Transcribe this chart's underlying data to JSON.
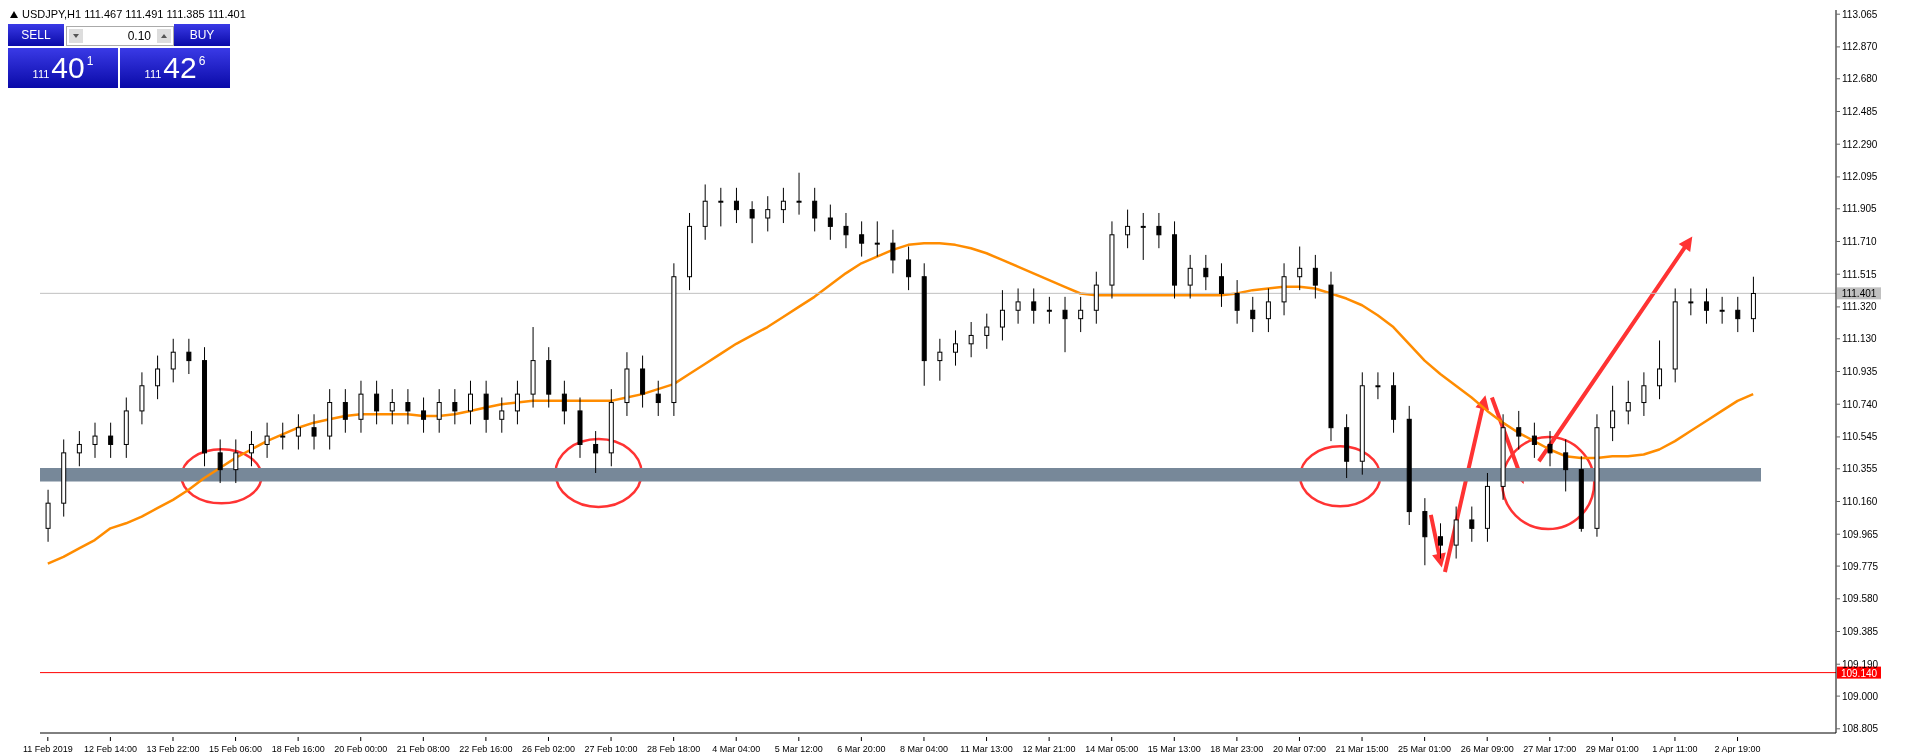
{
  "chart_data": {
    "type": "candlestick",
    "title": "USDJPY,H1 111.467 111.491 111.385 111.401",
    "annotations": [
      "SELL",
      "BUY",
      "0.10",
      "111",
      "40",
      "1",
      "111",
      "42",
      "6"
    ],
    "categories": [
      "11 Feb 2019",
      null,
      null,
      null,
      "12 Feb 14:00",
      null,
      null,
      null,
      "13 Feb 22:00",
      null,
      null,
      null,
      "15 Feb 06:00",
      null,
      null,
      null,
      "18 Feb 16:00",
      null,
      null,
      null,
      "20 Feb 00:00",
      null,
      null,
      null,
      "21 Feb 08:00",
      null,
      null,
      null,
      "22 Feb 16:00",
      null,
      null,
      null,
      "26 Feb 02:00",
      null,
      null,
      null,
      "27 Feb 10:00",
      null,
      null,
      null,
      "28 Feb 18:00",
      null,
      null,
      null,
      "4 Mar 04:00",
      null,
      null,
      null,
      "5 Mar 12:00",
      null,
      null,
      null,
      "6 Mar 20:00",
      null,
      null,
      null,
      "8 Mar 04:00",
      null,
      null,
      null,
      "11 Mar 13:00",
      null,
      null,
      null,
      "12 Mar 21:00",
      null,
      null,
      null,
      "14 Mar 05:00",
      null,
      null,
      null,
      "15 Mar 13:00",
      null,
      null,
      null,
      "18 Mar 23:00",
      null,
      null,
      null,
      "20 Mar 07:00",
      null,
      null,
      null,
      "21 Mar 15:00",
      null,
      null,
      null,
      "25 Mar 01:00",
      null,
      null,
      null,
      "26 Mar 09:00",
      null,
      null,
      null,
      "27 Mar 17:00",
      null,
      null,
      null,
      "29 Mar 01:00",
      null,
      null,
      null,
      "1 Apr 11:00",
      null,
      null,
      null,
      "2 Apr 19:00",
      null
    ],
    "color": "#000000",
    "ohlc": [
      [
        110.0,
        110.23,
        109.92,
        110.15
      ],
      [
        110.15,
        110.53,
        110.07,
        110.45
      ],
      [
        110.45,
        110.58,
        110.37,
        110.5
      ],
      [
        110.5,
        110.63,
        110.42,
        110.55
      ],
      [
        110.55,
        110.63,
        110.42,
        110.5
      ],
      [
        110.5,
        110.78,
        110.42,
        110.7
      ],
      [
        110.7,
        110.93,
        110.62,
        110.85
      ],
      [
        110.85,
        111.03,
        110.77,
        110.95
      ],
      [
        110.95,
        111.13,
        110.87,
        111.05
      ],
      [
        111.05,
        111.13,
        110.92,
        111.0
      ],
      [
        111.0,
        111.08,
        110.37,
        110.45
      ],
      [
        110.45,
        110.53,
        110.27,
        110.35
      ],
      [
        110.35,
        110.53,
        110.27,
        110.45
      ],
      [
        110.45,
        110.58,
        110.37,
        110.5
      ],
      [
        110.5,
        110.63,
        110.42,
        110.55
      ],
      [
        110.55,
        110.63,
        110.47,
        110.55
      ],
      [
        110.55,
        110.68,
        110.47,
        110.6
      ],
      [
        110.6,
        110.68,
        110.47,
        110.55
      ],
      [
        110.55,
        110.83,
        110.47,
        110.75
      ],
      [
        110.75,
        110.83,
        110.57,
        110.65
      ],
      [
        110.65,
        110.88,
        110.57,
        110.8
      ],
      [
        110.8,
        110.88,
        110.62,
        110.7
      ],
      [
        110.7,
        110.83,
        110.62,
        110.75
      ],
      [
        110.75,
        110.83,
        110.62,
        110.7
      ],
      [
        110.7,
        110.78,
        110.57,
        110.65
      ],
      [
        110.65,
        110.83,
        110.57,
        110.75
      ],
      [
        110.75,
        110.83,
        110.62,
        110.7
      ],
      [
        110.7,
        110.88,
        110.62,
        110.8
      ],
      [
        110.8,
        110.88,
        110.57,
        110.65
      ],
      [
        110.65,
        110.78,
        110.57,
        110.7
      ],
      [
        110.7,
        110.88,
        110.62,
        110.8
      ],
      [
        110.8,
        111.2,
        110.72,
        111.0
      ],
      [
        111.0,
        111.08,
        110.72,
        110.8
      ],
      [
        110.8,
        110.88,
        110.62,
        110.7
      ],
      [
        110.7,
        110.78,
        110.42,
        110.5
      ],
      [
        110.5,
        110.58,
        110.33,
        110.45
      ],
      [
        110.45,
        110.83,
        110.37,
        110.75
      ],
      [
        110.75,
        111.05,
        110.67,
        110.95
      ],
      [
        110.95,
        111.03,
        110.72,
        110.8
      ],
      [
        110.8,
        110.88,
        110.67,
        110.75
      ],
      [
        110.75,
        111.58,
        110.67,
        111.5
      ],
      [
        111.5,
        111.88,
        111.42,
        111.8
      ],
      [
        111.8,
        112.05,
        111.72,
        111.95
      ],
      [
        111.95,
        112.03,
        111.8,
        111.95
      ],
      [
        111.95,
        112.03,
        111.82,
        111.9
      ],
      [
        111.9,
        111.95,
        111.7,
        111.85
      ],
      [
        111.85,
        111.98,
        111.77,
        111.9
      ],
      [
        111.9,
        112.03,
        111.82,
        111.95
      ],
      [
        111.95,
        112.12,
        111.87,
        111.95
      ],
      [
        111.95,
        112.03,
        111.77,
        111.85
      ],
      [
        111.85,
        111.93,
        111.72,
        111.8
      ],
      [
        111.8,
        111.88,
        111.67,
        111.75
      ],
      [
        111.75,
        111.83,
        111.62,
        111.7
      ],
      [
        111.7,
        111.83,
        111.62,
        111.7
      ],
      [
        111.7,
        111.78,
        111.52,
        111.6
      ],
      [
        111.6,
        111.68,
        111.42,
        111.5
      ],
      [
        111.5,
        111.58,
        110.85,
        111.0
      ],
      [
        111.0,
        111.13,
        110.88,
        111.05
      ],
      [
        111.05,
        111.18,
        110.97,
        111.1
      ],
      [
        111.1,
        111.23,
        111.02,
        111.15
      ],
      [
        111.15,
        111.28,
        111.07,
        111.2
      ],
      [
        111.2,
        111.42,
        111.12,
        111.3
      ],
      [
        111.3,
        111.43,
        111.22,
        111.35
      ],
      [
        111.35,
        111.43,
        111.22,
        111.3
      ],
      [
        111.3,
        111.38,
        111.22,
        111.3
      ],
      [
        111.3,
        111.38,
        111.05,
        111.25
      ],
      [
        111.25,
        111.38,
        111.17,
        111.3
      ],
      [
        111.3,
        111.53,
        111.22,
        111.45
      ],
      [
        111.45,
        111.83,
        111.37,
        111.75
      ],
      [
        111.75,
        111.9,
        111.67,
        111.8
      ],
      [
        111.8,
        111.88,
        111.6,
        111.8
      ],
      [
        111.8,
        111.88,
        111.67,
        111.75
      ],
      [
        111.75,
        111.83,
        111.37,
        111.45
      ],
      [
        111.45,
        111.63,
        111.37,
        111.55
      ],
      [
        111.55,
        111.63,
        111.42,
        111.5
      ],
      [
        111.5,
        111.58,
        111.32,
        111.4
      ],
      [
        111.4,
        111.48,
        111.22,
        111.3
      ],
      [
        111.3,
        111.38,
        111.17,
        111.25
      ],
      [
        111.25,
        111.43,
        111.17,
        111.35
      ],
      [
        111.35,
        111.58,
        111.27,
        111.5
      ],
      [
        111.5,
        111.68,
        111.42,
        111.55
      ],
      [
        111.55,
        111.63,
        111.37,
        111.45
      ],
      [
        111.45,
        111.53,
        110.52,
        110.6
      ],
      [
        110.6,
        110.68,
        110.3,
        110.4
      ],
      [
        110.4,
        110.93,
        110.32,
        110.85
      ],
      [
        110.85,
        110.93,
        110.77,
        110.85
      ],
      [
        110.85,
        110.93,
        110.57,
        110.65
      ],
      [
        110.65,
        110.73,
        110.02,
        110.1
      ],
      [
        110.1,
        110.18,
        109.78,
        109.95
      ],
      [
        109.95,
        110.03,
        109.82,
        109.9
      ],
      [
        109.9,
        110.13,
        109.82,
        110.05
      ],
      [
        110.05,
        110.13,
        109.92,
        110.0
      ],
      [
        110.0,
        110.33,
        109.92,
        110.25
      ],
      [
        110.25,
        110.68,
        110.17,
        110.6
      ],
      [
        110.6,
        110.7,
        110.47,
        110.55
      ],
      [
        110.55,
        110.63,
        110.42,
        110.5
      ],
      [
        110.5,
        110.58,
        110.37,
        110.45
      ],
      [
        110.45,
        110.53,
        110.22,
        110.35
      ],
      [
        110.35,
        110.43,
        109.98,
        110.0
      ],
      [
        110.0,
        110.68,
        109.95,
        110.6
      ],
      [
        110.6,
        110.85,
        110.52,
        110.7
      ],
      [
        110.7,
        110.88,
        110.62,
        110.75
      ],
      [
        110.75,
        110.93,
        110.67,
        110.85
      ],
      [
        110.85,
        111.12,
        110.77,
        110.95
      ],
      [
        110.95,
        111.43,
        110.87,
        111.35
      ],
      [
        111.35,
        111.43,
        111.27,
        111.35
      ],
      [
        111.35,
        111.43,
        111.22,
        111.3
      ],
      [
        111.3,
        111.38,
        111.22,
        111.3
      ],
      [
        111.3,
        111.38,
        111.17,
        111.25
      ],
      [
        111.25,
        111.5,
        111.17,
        111.4
      ]
    ],
    "series": [
      {
        "type": "line",
        "color": "#ff8c00",
        "values": [
          109.79,
          109.83,
          109.88,
          109.93,
          110.0,
          110.03,
          110.07,
          110.12,
          110.17,
          110.23,
          110.3,
          110.36,
          110.42,
          110.47,
          110.52,
          110.56,
          110.6,
          110.63,
          110.65,
          110.67,
          110.68,
          110.68,
          110.68,
          110.68,
          110.67,
          110.67,
          110.68,
          110.7,
          110.72,
          110.74,
          110.75,
          110.76,
          110.76,
          110.76,
          110.76,
          110.76,
          110.76,
          110.78,
          110.8,
          110.83,
          110.86,
          110.92,
          110.98,
          111.04,
          111.1,
          111.15,
          111.2,
          111.26,
          111.32,
          111.38,
          111.45,
          111.52,
          111.58,
          111.62,
          111.66,
          111.69,
          111.7,
          111.7,
          111.69,
          111.67,
          111.64,
          111.6,
          111.56,
          111.52,
          111.48,
          111.44,
          111.4,
          111.39,
          111.39,
          111.39,
          111.39,
          111.39,
          111.39,
          111.39,
          111.39,
          111.39,
          111.4,
          111.42,
          111.43,
          111.44,
          111.44,
          111.43,
          111.4,
          111.37,
          111.33,
          111.27,
          111.2,
          111.1,
          111.0,
          110.92,
          110.85,
          110.78,
          110.7,
          110.63,
          110.57,
          110.52,
          110.47,
          110.43,
          110.42,
          110.42,
          110.43,
          110.43,
          110.44,
          110.47,
          110.52,
          110.58,
          110.64,
          110.7,
          110.76,
          110.8
        ]
      }
    ],
    "ylim": [
      108.78,
      113.09
    ],
    "yticks": [
      113.065,
      {
        "value": 112.87,
        "label": "112.870"
      },
      {
        "value": 112.68,
        "label": "112.680"
      },
      112.485,
      {
        "value": 112.29,
        "label": "112.290"
      },
      112.095,
      111.905,
      {
        "value": 111.71,
        "label": "111.710"
      },
      111.515,
      {
        "value": 111.32,
        "label": "111.320"
      },
      {
        "value": 111.13,
        "label": "111.130"
      },
      110.935,
      {
        "value": 110.74,
        "label": "110.740"
      },
      110.545,
      110.355,
      {
        "value": 110.16,
        "label": "110.160"
      },
      109.965,
      109.775,
      {
        "value": 109.58,
        "label": "109.580"
      },
      109.385,
      {
        "value": 109.19,
        "label": "109.190"
      },
      {
        "value": 109.0,
        "label": "109.000"
      },
      108.805
    ],
    "ref_lines": [
      {
        "axis": "y",
        "value": 111.401,
        "label": "111.401",
        "color": "#c0c0c0"
      },
      {
        "axis": "y",
        "value": 109.14,
        "label": "109.140",
        "color": "#ff0000"
      }
    ],
    "bands": [
      {
        "axis": "y",
        "from": 110.28,
        "to": 110.36,
        "color": "#778899"
      }
    ],
    "grid": false,
    "marker": "none",
    "line_style": "solid"
  }
}
